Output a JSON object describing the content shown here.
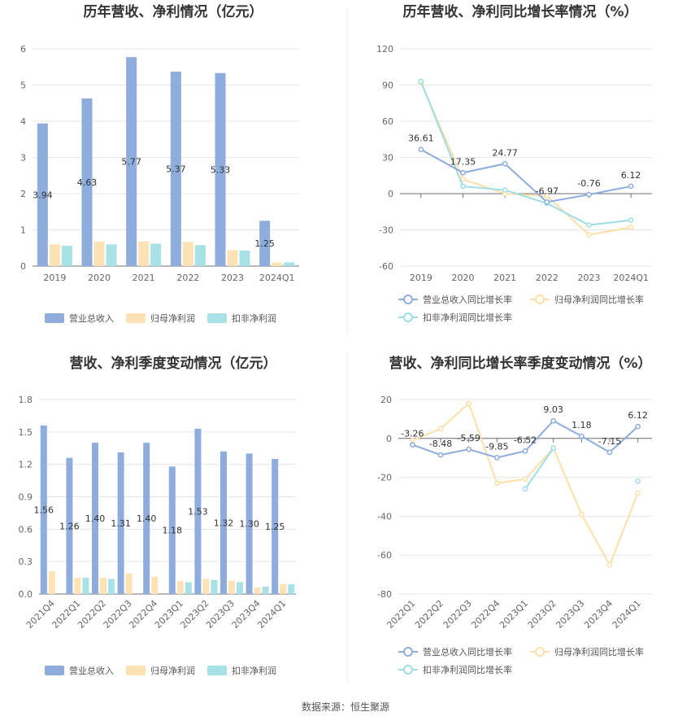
{
  "footer": "数据来源：恒生聚源",
  "colors": {
    "revenue": "#8eacdc",
    "parent_profit": "#fde2b5",
    "deducted_profit": "#a8e2e6",
    "revenue_line": "#8eacdc",
    "parent_line": "#fde0a8",
    "deducted_line": "#9ddde3"
  },
  "legend_bars": [
    "营业总收入",
    "归母净利润",
    "扣非净利润"
  ],
  "legend_lines": [
    "营业总收入同比增长率",
    "归母净利润同比增长率",
    "扣非净利润同比增长率"
  ],
  "chart_data": [
    {
      "type": "bar",
      "title": "历年营收、净利情况（亿元）",
      "categories": [
        "2019",
        "2020",
        "2021",
        "2022",
        "2023",
        "2024Q1"
      ],
      "ylim": [
        0,
        6
      ],
      "yticks": [
        0,
        1,
        2,
        3,
        4,
        5,
        6
      ],
      "series": [
        {
          "name": "营业总收入",
          "values": [
            3.94,
            4.63,
            5.77,
            5.37,
            5.33,
            1.25
          ]
        },
        {
          "name": "归母净利润",
          "values": [
            0.6,
            0.68,
            0.68,
            0.67,
            0.44,
            0.1
          ]
        },
        {
          "name": "扣非净利润",
          "values": [
            0.56,
            0.6,
            0.62,
            0.58,
            0.43,
            0.1
          ]
        }
      ],
      "data_labels": [
        "3.94",
        "4.63",
        "5.77",
        "5.37",
        "5.33",
        "1.25"
      ],
      "legend_position": "bottom",
      "grid": true
    },
    {
      "type": "line",
      "title": "历年营收、净利同比增长率情况（%）",
      "categories": [
        "2019",
        "2020",
        "2021",
        "2022",
        "2023",
        "2024Q1"
      ],
      "ylim": [
        -60,
        120
      ],
      "yticks": [
        -60,
        -30,
        0,
        30,
        60,
        90,
        120
      ],
      "series": [
        {
          "name": "营业总收入同比增长率",
          "values": [
            36.61,
            17.35,
            24.77,
            -6.97,
            -0.76,
            6.12
          ]
        },
        {
          "name": "归母净利润同比增长率",
          "values": [
            92,
            12,
            0,
            -2,
            -34,
            -28
          ]
        },
        {
          "name": "扣非净利润同比增长率",
          "values": [
            93,
            6,
            3,
            -8,
            -26,
            -22
          ]
        }
      ],
      "data_labels": [
        "36.61",
        "17.35",
        "24.77",
        "-6.97",
        "-0.76",
        "6.12"
      ],
      "legend_position": "bottom",
      "grid": true
    },
    {
      "type": "bar",
      "title": "营收、净利季度变动情况（亿元）",
      "categories": [
        "2021Q4",
        "2022Q1",
        "2022Q2",
        "2022Q3",
        "2022Q4",
        "2023Q1",
        "2023Q2",
        "2023Q3",
        "2023Q4",
        "2024Q1"
      ],
      "ylim": [
        0,
        1.8
      ],
      "yticks": [
        0,
        0.3,
        0.6,
        0.9,
        1.2,
        1.5,
        1.8
      ],
      "series": [
        {
          "name": "营业总收入",
          "values": [
            1.56,
            1.26,
            1.4,
            1.31,
            1.4,
            1.18,
            1.53,
            1.32,
            1.3,
            1.25
          ]
        },
        {
          "name": "归母净利润",
          "values": [
            0.21,
            0.15,
            0.15,
            0.19,
            0.16,
            0.12,
            0.14,
            0.12,
            0.06,
            0.09
          ]
        },
        {
          "name": "扣非净利润",
          "values": [
            null,
            0.15,
            0.14,
            null,
            null,
            0.11,
            0.13,
            0.11,
            0.07,
            0.09
          ]
        }
      ],
      "data_labels": [
        "1.56",
        "1.26",
        "1.40",
        "1.31",
        "1.40",
        "1.18",
        "1.53",
        "1.32",
        "1.30",
        "1.25"
      ],
      "legend_position": "bottom",
      "grid": true
    },
    {
      "type": "line",
      "title": "营收、净利同比增长率季度变动情况（%）",
      "categories": [
        "2022Q1",
        "2022Q2",
        "2022Q3",
        "2022Q4",
        "2023Q1",
        "2023Q2",
        "2023Q3",
        "2023Q4",
        "2024Q1"
      ],
      "ylim": [
        -80,
        20
      ],
      "yticks": [
        -80,
        -60,
        -40,
        -20,
        0,
        20
      ],
      "series": [
        {
          "name": "营业总收入同比增长率",
          "values": [
            -3.26,
            -8.48,
            -5.59,
            -9.85,
            -6.52,
            9.03,
            1.18,
            -7.15,
            6.12
          ]
        },
        {
          "name": "归母净利润同比增长率",
          "values": [
            -1,
            5,
            18,
            -23,
            -21,
            -5,
            -39,
            -65,
            -28
          ]
        },
        {
          "name": "扣非净利润同比增长率",
          "values": [
            null,
            null,
            null,
            null,
            -26,
            -5,
            null,
            null,
            -22
          ]
        }
      ],
      "data_labels": [
        "-3.26",
        "-8.48",
        "-5.59",
        "-9.85",
        "-6.52",
        "9.03",
        "1.18",
        "-7.15",
        "6.12"
      ],
      "legend_position": "bottom",
      "grid": true
    }
  ]
}
